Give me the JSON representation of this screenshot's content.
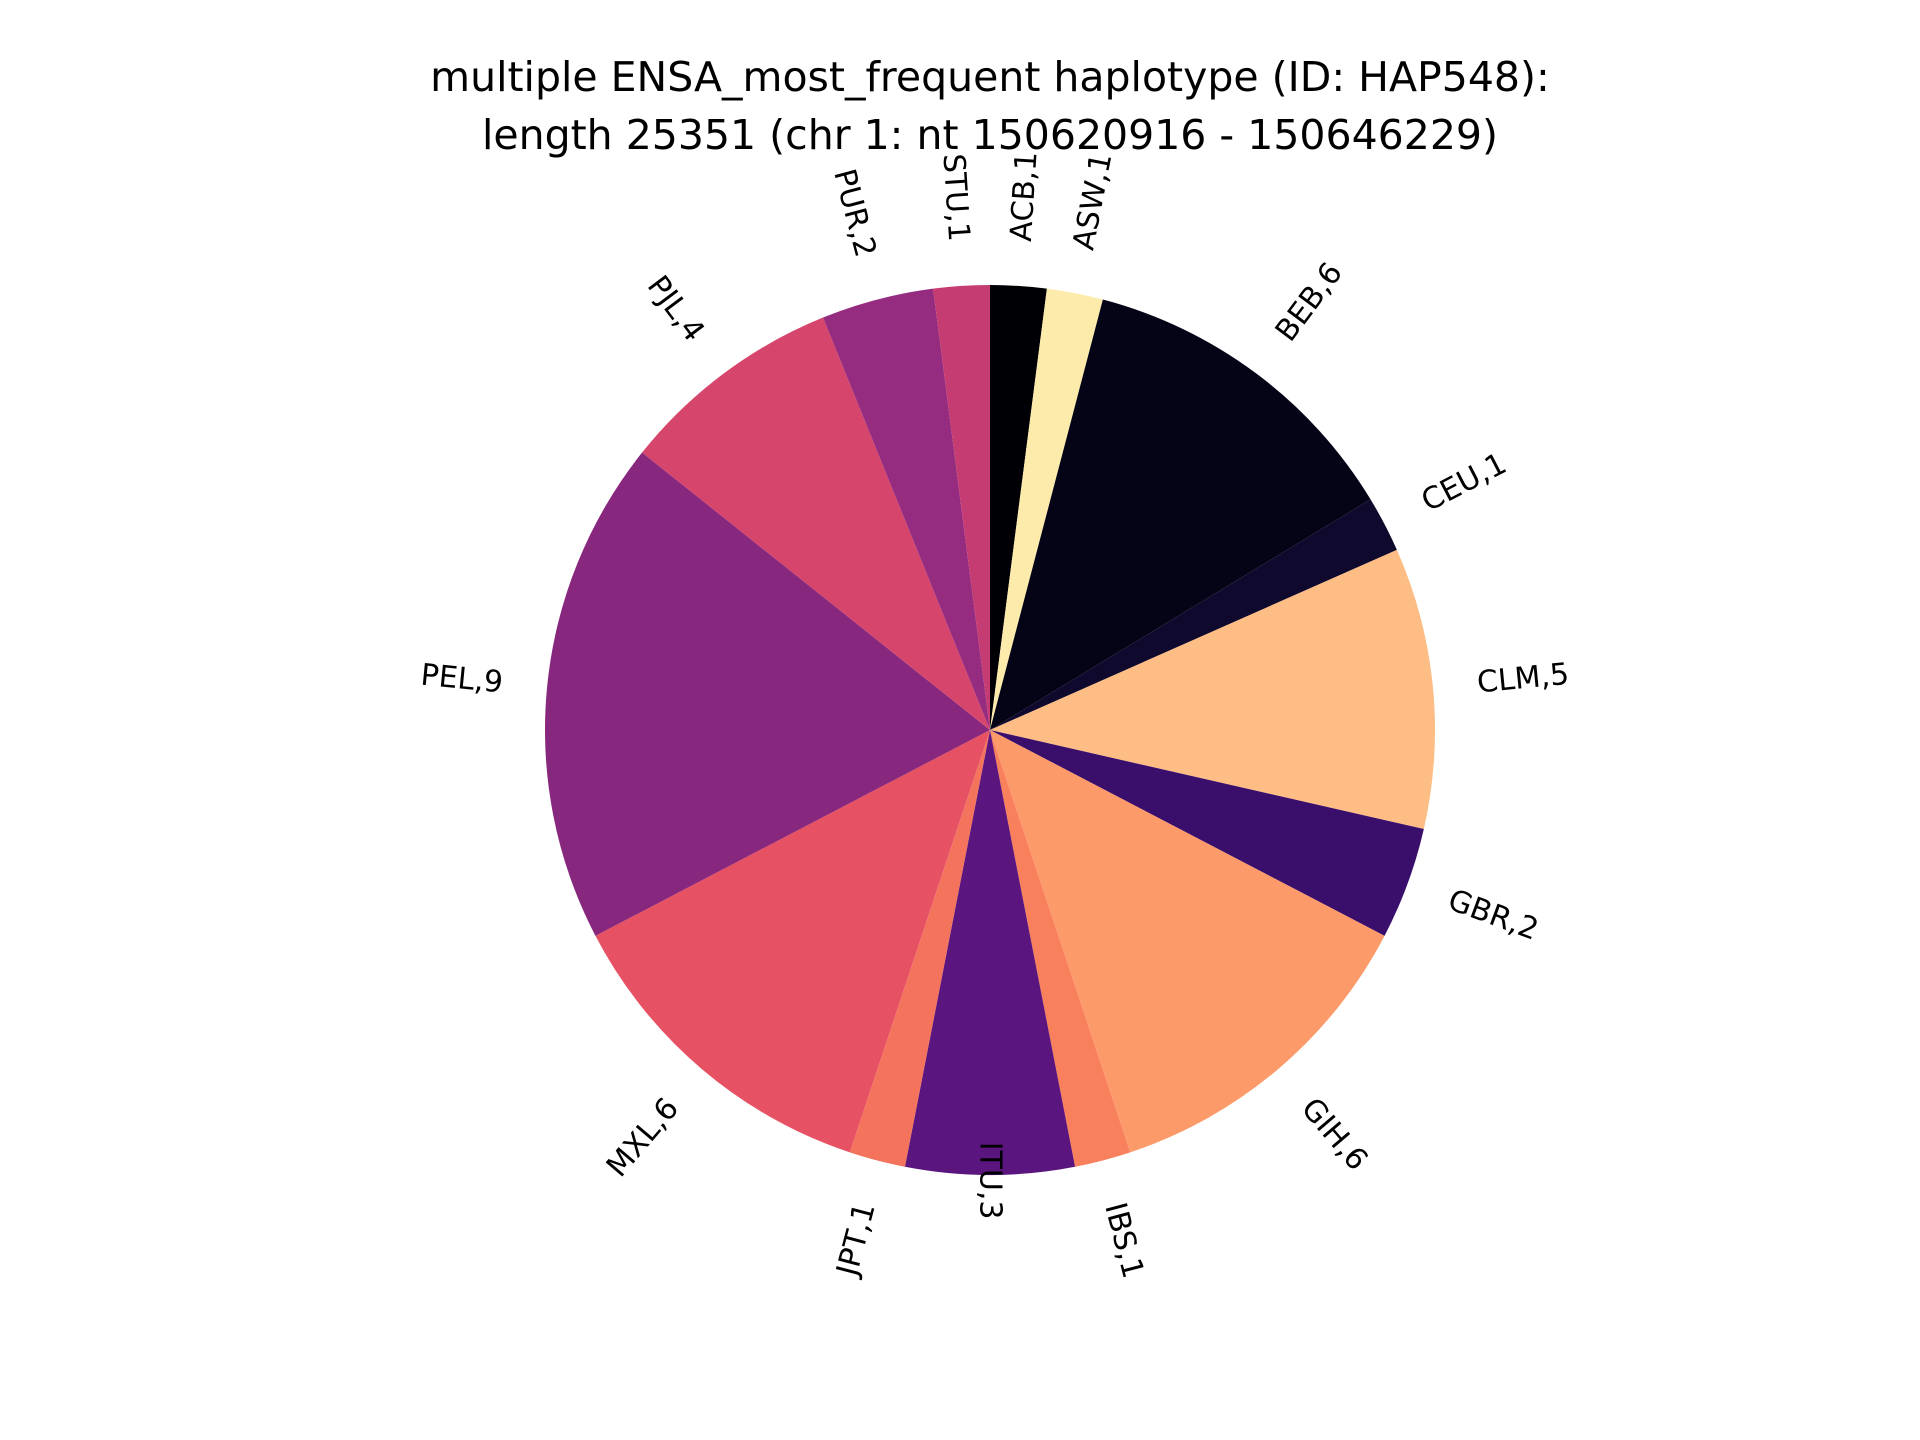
{
  "chart_data": {
    "type": "pie",
    "title_lines": [
      "multiple ENSA_most_frequent haplotype (ID: HAP548):",
      "length 25351 (chr 1: nt 150620916 - 150646229)"
    ],
    "start_angle_deg": 90,
    "direction": "clockwise",
    "slices": [
      {
        "label": "ACB",
        "value": 1,
        "display": "ACB,1",
        "color": "#000004"
      },
      {
        "label": "ASW",
        "value": 1,
        "display": "ASW,1",
        "color": "#fcebaa"
      },
      {
        "label": "BEB",
        "value": 6,
        "display": "BEB,6",
        "color": "#050417"
      },
      {
        "label": "CEU",
        "value": 1,
        "display": "CEU,1",
        "color": "#0f0a2d"
      },
      {
        "label": "CLM",
        "value": 5,
        "display": "CLM,5",
        "color": "#fdbd84"
      },
      {
        "label": "GBR",
        "value": 2,
        "display": "GBR,2",
        "color": "#3a0f6c"
      },
      {
        "label": "GIH",
        "value": 6,
        "display": "GIH,6",
        "color": "#fc9a6a"
      },
      {
        "label": "IBS",
        "value": 1,
        "display": "IBS,1",
        "color": "#f9805d"
      },
      {
        "label": "ITU",
        "value": 3,
        "display": "ITU,3",
        "color": "#5a167e"
      },
      {
        "label": "JPT",
        "value": 1,
        "display": "JPT,1",
        "color": "#f4735c"
      },
      {
        "label": "MXL",
        "value": 6,
        "display": "MXL,6",
        "color": "#e65263"
      },
      {
        "label": "PEL",
        "value": 9,
        "display": "PEL,9",
        "color": "#88277e"
      },
      {
        "label": "PJL",
        "value": 4,
        "display": "PJL,4",
        "color": "#d6456b"
      },
      {
        "label": "PUR",
        "value": 2,
        "display": "PUR,2",
        "color": "#952c7f"
      },
      {
        "label": "STU",
        "value": 1,
        "display": "STU,1",
        "color": "#c43c71"
      }
    ]
  }
}
